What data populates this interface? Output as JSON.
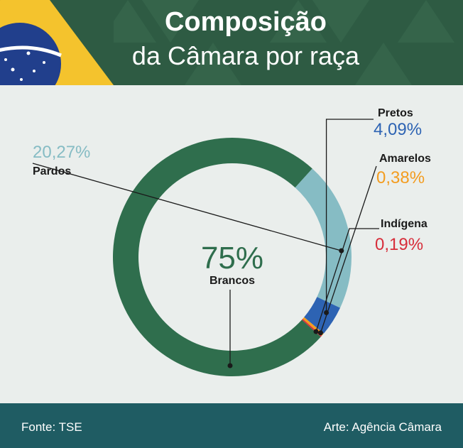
{
  "header": {
    "title_main": "Composição",
    "title_sub": "da Câmara por raça"
  },
  "chart_data": {
    "type": "pie",
    "style": "donut",
    "slices": [
      {
        "label": "Brancos",
        "value": 75,
        "display": "75%",
        "color": "#2f6e4d"
      },
      {
        "label": "Pardos",
        "value": 20.27,
        "display": "20,27%",
        "color": "#86bcc4"
      },
      {
        "label": "Pretos",
        "value": 4.09,
        "display": "4,09%",
        "color": "#2d63b3"
      },
      {
        "label": "Amarelos",
        "value": 0.38,
        "display": "0,38%",
        "color": "#f39c1f"
      },
      {
        "label": "Indígena",
        "value": 0.19,
        "display": "0,19%",
        "color": "#d72d3a"
      }
    ]
  },
  "footer": {
    "source": "Fonte: TSE",
    "credit": "Arte: Agência Câmara"
  },
  "colors": {
    "header_bg": "#2e5b43",
    "footer_bg": "#1f5c63",
    "background": "#eaeeec",
    "flag_yellow": "#f4c32d",
    "flag_blue": "#213f8c"
  }
}
